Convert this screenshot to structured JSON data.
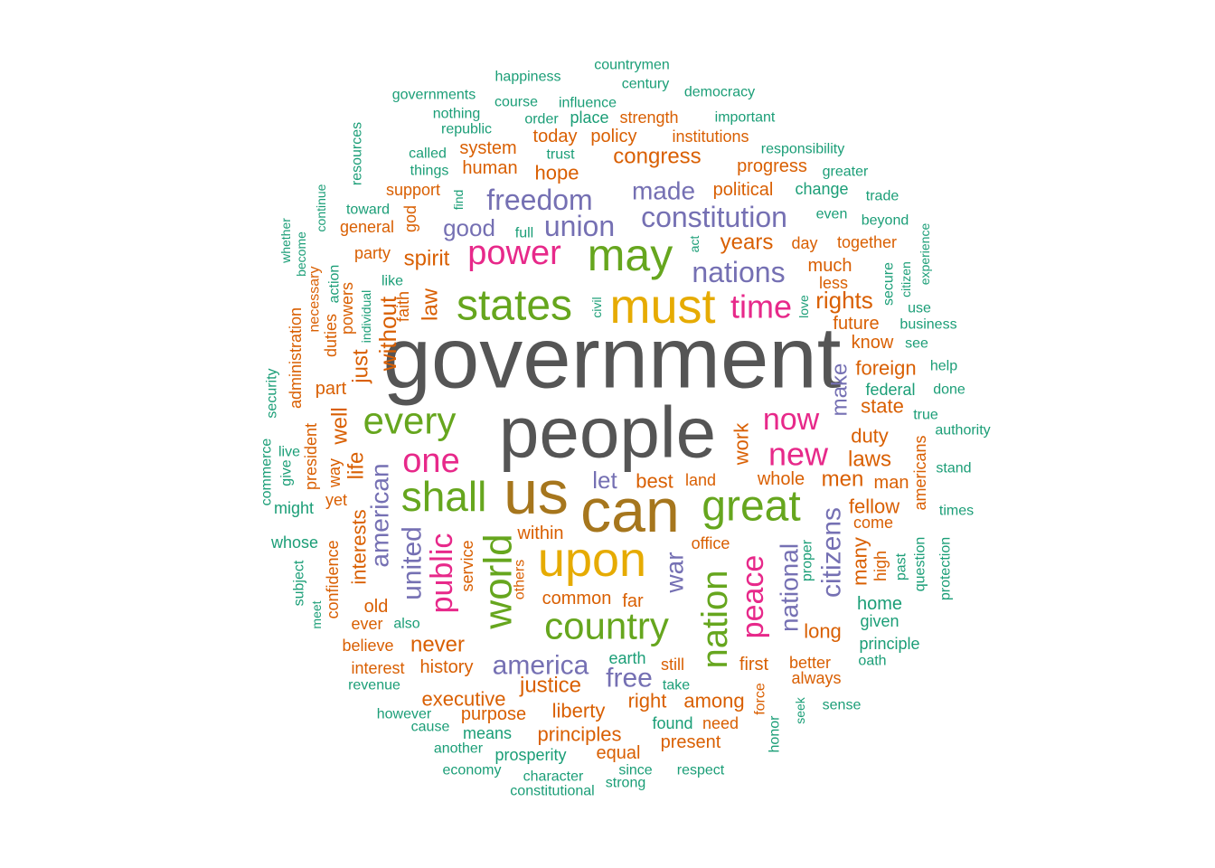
{
  "colors": {
    "c1": "#1b9e77",
    "c2": "#d95f02",
    "c3": "#7570b3",
    "c4": "#e7298a",
    "c5": "#66a61e",
    "c6": "#e6ab02",
    "c7": "#a6761d",
    "c8": "#555555"
  },
  "words": [
    {
      "text": "government",
      "color": "c8"
    },
    {
      "text": "people",
      "color": "c8"
    },
    {
      "text": "us",
      "color": "c7"
    },
    {
      "text": "can",
      "color": "c7"
    },
    {
      "text": "must",
      "color": "c6"
    },
    {
      "text": "upon",
      "color": "c6"
    },
    {
      "text": "may",
      "color": "c5"
    },
    {
      "text": "states",
      "color": "c5"
    },
    {
      "text": "great",
      "color": "c5"
    },
    {
      "text": "shall",
      "color": "c5"
    },
    {
      "text": "world",
      "color": "c5"
    },
    {
      "text": "country",
      "color": "c5"
    },
    {
      "text": "nation",
      "color": "c5"
    },
    {
      "text": "every",
      "color": "c5"
    },
    {
      "text": "power",
      "color": "c4"
    },
    {
      "text": "one",
      "color": "c4"
    },
    {
      "text": "new",
      "color": "c4"
    },
    {
      "text": "now",
      "color": "c4"
    },
    {
      "text": "time",
      "color": "c4"
    },
    {
      "text": "peace",
      "color": "c4"
    },
    {
      "text": "public",
      "color": "c4"
    },
    {
      "text": "freedom",
      "color": "c3"
    },
    {
      "text": "constitution",
      "color": "c3"
    },
    {
      "text": "union",
      "color": "c3"
    },
    {
      "text": "made",
      "color": "c3"
    },
    {
      "text": "nations",
      "color": "c3"
    },
    {
      "text": "good",
      "color": "c3"
    },
    {
      "text": "america",
      "color": "c3"
    },
    {
      "text": "free",
      "color": "c3"
    },
    {
      "text": "citizens",
      "color": "c3"
    },
    {
      "text": "united",
      "color": "c3"
    },
    {
      "text": "american",
      "color": "c3"
    },
    {
      "text": "war",
      "color": "c3"
    },
    {
      "text": "national",
      "color": "c3"
    },
    {
      "text": "make",
      "color": "c3"
    },
    {
      "text": "let",
      "color": "c3"
    },
    {
      "text": "happiness",
      "color": "c1"
    },
    {
      "text": "countrymen",
      "color": "c1"
    },
    {
      "text": "century",
      "color": "c1"
    },
    {
      "text": "democracy",
      "color": "c1"
    },
    {
      "text": "governments",
      "color": "c1"
    },
    {
      "text": "course",
      "color": "c1"
    },
    {
      "text": "influence",
      "color": "c1"
    },
    {
      "text": "nothing",
      "color": "c1"
    },
    {
      "text": "place",
      "color": "c1"
    },
    {
      "text": "strength",
      "color": "c2"
    },
    {
      "text": "important",
      "color": "c1"
    },
    {
      "text": "order",
      "color": "c1"
    },
    {
      "text": "republic",
      "color": "c1"
    },
    {
      "text": "today",
      "color": "c2"
    },
    {
      "text": "policy",
      "color": "c2"
    },
    {
      "text": "institutions",
      "color": "c2"
    },
    {
      "text": "resources",
      "color": "c1"
    },
    {
      "text": "system",
      "color": "c2"
    },
    {
      "text": "responsibility",
      "color": "c1"
    },
    {
      "text": "called",
      "color": "c1"
    },
    {
      "text": "trust",
      "color": "c1"
    },
    {
      "text": "congress",
      "color": "c2"
    },
    {
      "text": "things",
      "color": "c1"
    },
    {
      "text": "human",
      "color": "c2"
    },
    {
      "text": "hope",
      "color": "c2"
    },
    {
      "text": "progress",
      "color": "c2"
    },
    {
      "text": "greater",
      "color": "c1"
    },
    {
      "text": "support",
      "color": "c2"
    },
    {
      "text": "political",
      "color": "c2"
    },
    {
      "text": "change",
      "color": "c1"
    },
    {
      "text": "trade",
      "color": "c1"
    },
    {
      "text": "continue",
      "color": "c1"
    },
    {
      "text": "find",
      "color": "c1"
    },
    {
      "text": "toward",
      "color": "c1"
    },
    {
      "text": "god",
      "color": "c2"
    },
    {
      "text": "even",
      "color": "c1"
    },
    {
      "text": "beyond",
      "color": "c1"
    },
    {
      "text": "whether",
      "color": "c1"
    },
    {
      "text": "general",
      "color": "c2"
    },
    {
      "text": "full",
      "color": "c1"
    },
    {
      "text": "years",
      "color": "c2"
    },
    {
      "text": "day",
      "color": "c2"
    },
    {
      "text": "together",
      "color": "c2"
    },
    {
      "text": "experience",
      "color": "c1"
    },
    {
      "text": "become",
      "color": "c1"
    },
    {
      "text": "party",
      "color": "c2"
    },
    {
      "text": "act",
      "color": "c1"
    },
    {
      "text": "spirit",
      "color": "c2"
    },
    {
      "text": "much",
      "color": "c2"
    },
    {
      "text": "secure",
      "color": "c1"
    },
    {
      "text": "citizen",
      "color": "c1"
    },
    {
      "text": "action",
      "color": "c1"
    },
    {
      "text": "like",
      "color": "c1"
    },
    {
      "text": "less",
      "color": "c2"
    },
    {
      "text": "necessary",
      "color": "c2"
    },
    {
      "text": "administration",
      "color": "c2"
    },
    {
      "text": "powers",
      "color": "c2"
    },
    {
      "text": "law",
      "color": "c2"
    },
    {
      "text": "faith",
      "color": "c2"
    },
    {
      "text": "individual",
      "color": "c1"
    },
    {
      "text": "civil",
      "color": "c1"
    },
    {
      "text": "love",
      "color": "c1"
    },
    {
      "text": "rights",
      "color": "c2"
    },
    {
      "text": "use",
      "color": "c1"
    },
    {
      "text": "future",
      "color": "c2"
    },
    {
      "text": "business",
      "color": "c1"
    },
    {
      "text": "duties",
      "color": "c2"
    },
    {
      "text": "without",
      "color": "c2"
    },
    {
      "text": "know",
      "color": "c2"
    },
    {
      "text": "see",
      "color": "c1"
    },
    {
      "text": "just",
      "color": "c2"
    },
    {
      "text": "foreign",
      "color": "c2"
    },
    {
      "text": "help",
      "color": "c1"
    },
    {
      "text": "security",
      "color": "c1"
    },
    {
      "text": "part",
      "color": "c2"
    },
    {
      "text": "federal",
      "color": "c1"
    },
    {
      "text": "done",
      "color": "c1"
    },
    {
      "text": "state",
      "color": "c2"
    },
    {
      "text": "true",
      "color": "c1"
    },
    {
      "text": "well",
      "color": "c2"
    },
    {
      "text": "authority",
      "color": "c1"
    },
    {
      "text": "president",
      "color": "c2"
    },
    {
      "text": "duty",
      "color": "c2"
    },
    {
      "text": "work",
      "color": "c2"
    },
    {
      "text": "live",
      "color": "c1"
    },
    {
      "text": "commerce",
      "color": "c1"
    },
    {
      "text": "life",
      "color": "c2"
    },
    {
      "text": "laws",
      "color": "c2"
    },
    {
      "text": "americans",
      "color": "c2"
    },
    {
      "text": "give",
      "color": "c1"
    },
    {
      "text": "way",
      "color": "c2"
    },
    {
      "text": "stand",
      "color": "c1"
    },
    {
      "text": "yet",
      "color": "c2"
    },
    {
      "text": "best",
      "color": "c2"
    },
    {
      "text": "land",
      "color": "c2"
    },
    {
      "text": "whole",
      "color": "c2"
    },
    {
      "text": "men",
      "color": "c2"
    },
    {
      "text": "man",
      "color": "c2"
    },
    {
      "text": "might",
      "color": "c1"
    },
    {
      "text": "fellow",
      "color": "c2"
    },
    {
      "text": "times",
      "color": "c1"
    },
    {
      "text": "interests",
      "color": "c2"
    },
    {
      "text": "come",
      "color": "c2"
    },
    {
      "text": "within",
      "color": "c2"
    },
    {
      "text": "whose",
      "color": "c1"
    },
    {
      "text": "confidence",
      "color": "c2"
    },
    {
      "text": "office",
      "color": "c2"
    },
    {
      "text": "service",
      "color": "c2"
    },
    {
      "text": "others",
      "color": "c2"
    },
    {
      "text": "proper",
      "color": "c1"
    },
    {
      "text": "many",
      "color": "c2"
    },
    {
      "text": "high",
      "color": "c2"
    },
    {
      "text": "past",
      "color": "c1"
    },
    {
      "text": "question",
      "color": "c1"
    },
    {
      "text": "protection",
      "color": "c1"
    },
    {
      "text": "subject",
      "color": "c1"
    },
    {
      "text": "common",
      "color": "c2"
    },
    {
      "text": "far",
      "color": "c2"
    },
    {
      "text": "old",
      "color": "c2"
    },
    {
      "text": "home",
      "color": "c1"
    },
    {
      "text": "meet",
      "color": "c1"
    },
    {
      "text": "ever",
      "color": "c2"
    },
    {
      "text": "also",
      "color": "c1"
    },
    {
      "text": "long",
      "color": "c2"
    },
    {
      "text": "given",
      "color": "c1"
    },
    {
      "text": "believe",
      "color": "c2"
    },
    {
      "text": "never",
      "color": "c2"
    },
    {
      "text": "principle",
      "color": "c1"
    },
    {
      "text": "earth",
      "color": "c1"
    },
    {
      "text": "oath",
      "color": "c1"
    },
    {
      "text": "interest",
      "color": "c2"
    },
    {
      "text": "history",
      "color": "c2"
    },
    {
      "text": "justice",
      "color": "c2"
    },
    {
      "text": "still",
      "color": "c2"
    },
    {
      "text": "first",
      "color": "c2"
    },
    {
      "text": "better",
      "color": "c2"
    },
    {
      "text": "always",
      "color": "c2"
    },
    {
      "text": "revenue",
      "color": "c1"
    },
    {
      "text": "take",
      "color": "c1"
    },
    {
      "text": "executive",
      "color": "c2"
    },
    {
      "text": "right",
      "color": "c2"
    },
    {
      "text": "among",
      "color": "c2"
    },
    {
      "text": "sense",
      "color": "c1"
    },
    {
      "text": "however",
      "color": "c1"
    },
    {
      "text": "liberty",
      "color": "c2"
    },
    {
      "text": "purpose",
      "color": "c2"
    },
    {
      "text": "force",
      "color": "c2"
    },
    {
      "text": "seek",
      "color": "c1"
    },
    {
      "text": "cause",
      "color": "c1"
    },
    {
      "text": "found",
      "color": "c1"
    },
    {
      "text": "need",
      "color": "c2"
    },
    {
      "text": "means",
      "color": "c1"
    },
    {
      "text": "principles",
      "color": "c2"
    },
    {
      "text": "honor",
      "color": "c1"
    },
    {
      "text": "present",
      "color": "c2"
    },
    {
      "text": "another",
      "color": "c1"
    },
    {
      "text": "equal",
      "color": "c2"
    },
    {
      "text": "prosperity",
      "color": "c1"
    },
    {
      "text": "economy",
      "color": "c1"
    },
    {
      "text": "since",
      "color": "c1"
    },
    {
      "text": "respect",
      "color": "c1"
    },
    {
      "text": "character",
      "color": "c1"
    },
    {
      "text": "strong",
      "color": "c1"
    },
    {
      "text": "constitutional",
      "color": "c1"
    }
  ]
}
